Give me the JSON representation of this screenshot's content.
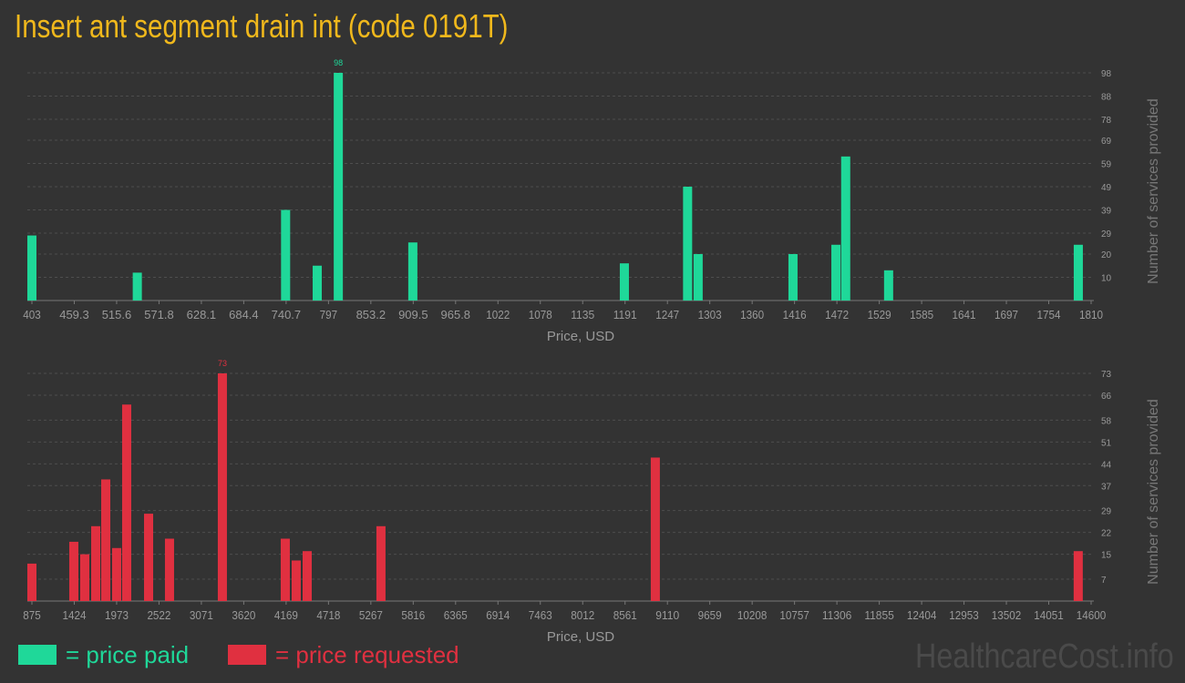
{
  "title": "Insert ant segment drain int (code 0191T)",
  "colors": {
    "paid": "#1fd899",
    "requested": "#e03040",
    "grid": "#555555",
    "text": "#999999"
  },
  "legend": {
    "paid": "= price paid",
    "requested": "= price requested"
  },
  "watermark": "HealthcareCost.info",
  "chart_data": [
    {
      "type": "bar",
      "xlabel": "Price, USD",
      "ylabel": "Number of services provided",
      "grid": true,
      "xlim": [
        403,
        1810
      ],
      "ylim": [
        0,
        98
      ],
      "xticks": [
        "403",
        "459.3",
        "515.6",
        "571.8",
        "628.1",
        "684.4",
        "740.7",
        "797",
        "853.2",
        "909.5",
        "965.8",
        "1022",
        "1078",
        "1135",
        "1191",
        "1247",
        "1303",
        "1360",
        "1416",
        "1472",
        "1529",
        "1585",
        "1641",
        "1697",
        "1754",
        "1810"
      ],
      "yticks": [
        "10",
        "20",
        "29",
        "39",
        "49",
        "59",
        "69",
        "78",
        "88",
        "98"
      ],
      "max_label": "98",
      "series": [
        {
          "x": [
            403,
            543,
            740,
            782,
            810,
            909,
            1190,
            1274,
            1288,
            1414,
            1471,
            1484,
            1541,
            1793
          ],
          "values": [
            28,
            12,
            39,
            15,
            98,
            25,
            16,
            49,
            20,
            20,
            24,
            62,
            13,
            24
          ]
        }
      ]
    },
    {
      "type": "bar",
      "xlabel": "Price, USD",
      "ylabel": "Number of services provided",
      "grid": true,
      "xlim": [
        875,
        14600
      ],
      "ylim": [
        0,
        73
      ],
      "xticks": [
        "875",
        "1424",
        "1973",
        "2522",
        "3071",
        "3620",
        "4169",
        "4718",
        "5267",
        "5816",
        "6365",
        "6914",
        "7463",
        "8012",
        "8561",
        "9110",
        "9659",
        "10208",
        "10757",
        "11306",
        "11855",
        "12404",
        "12953",
        "13502",
        "14051",
        "14600"
      ],
      "yticks": [
        "7",
        "15",
        "22",
        "29",
        "37",
        "44",
        "51",
        "58",
        "66",
        "73"
      ],
      "max_label": "73",
      "series": [
        {
          "x": [
            875,
            1418,
            1560,
            1702,
            1832,
            1973,
            2103,
            2387,
            2658,
            3343,
            4158,
            4300,
            4442,
            5398,
            8953,
            14433
          ],
          "values": [
            12,
            19,
            15,
            24,
            39,
            17,
            63,
            28,
            20,
            73,
            20,
            13,
            16,
            24,
            46,
            16
          ]
        }
      ]
    }
  ]
}
